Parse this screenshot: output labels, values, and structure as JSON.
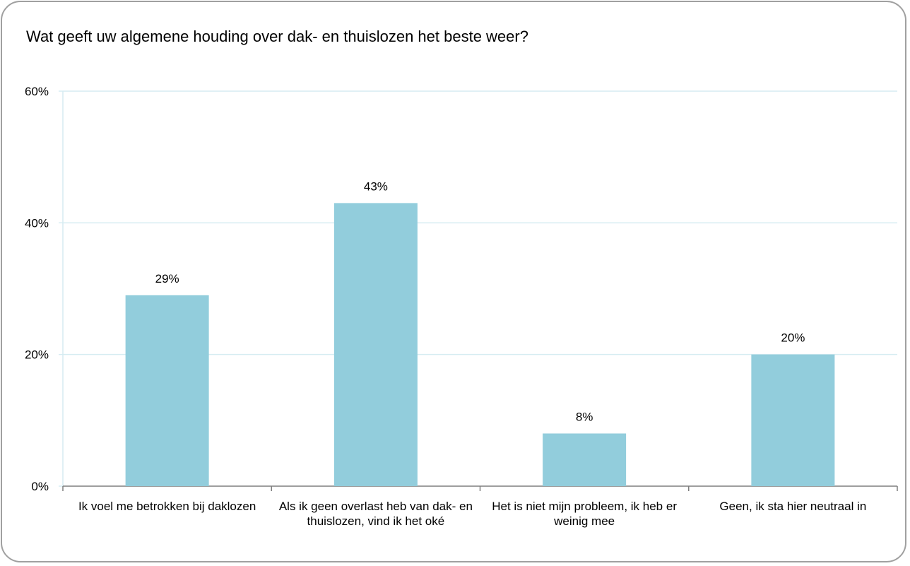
{
  "chart_data": {
    "type": "bar",
    "title": "Wat geeft uw algemene houding over dak- en thuislozen het beste weer?",
    "xlabel": "",
    "ylabel": "",
    "categories": [
      "Ik voel me betrokken bij daklozen",
      "Als ik geen overlast heb van dak- en thuislozen, vind ik het oké",
      "Het is niet mijn probleem, ik heb er weinig mee",
      "Geen, ik sta hier neutraal in"
    ],
    "values": [
      29,
      43,
      8,
      20
    ],
    "data_labels": [
      "29%",
      "43%",
      "8%",
      "20%"
    ],
    "ylim": [
      0,
      60
    ],
    "yticks": [
      0,
      20,
      40,
      60
    ],
    "ytick_labels": [
      "0%",
      "20%",
      "40%",
      "60%"
    ],
    "grid": true,
    "legend": "none",
    "colors": {
      "bar": "#92cddc",
      "grid": "#d6ecf2",
      "axis": "#7f7f7f",
      "frame": "#a0a0a0"
    }
  }
}
